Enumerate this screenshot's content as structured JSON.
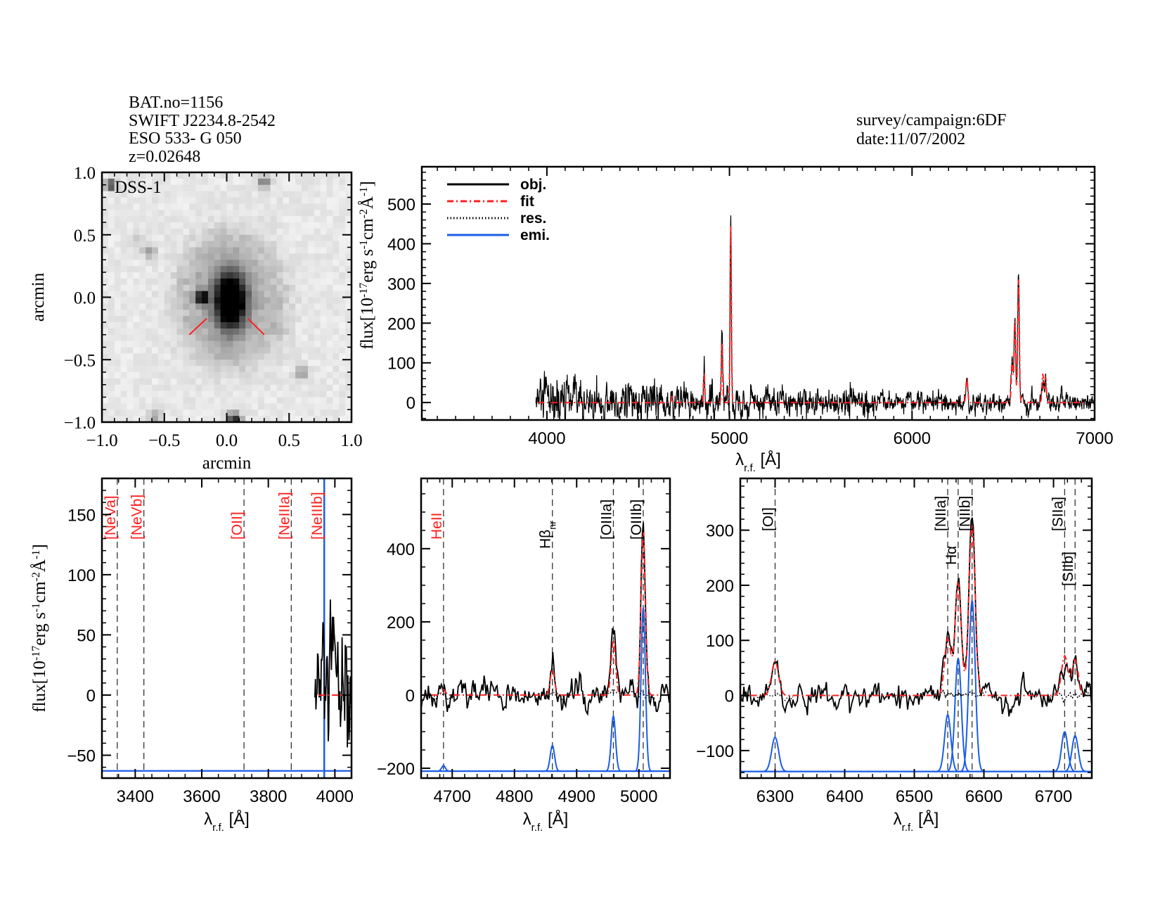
{
  "header": {
    "lines": [
      "BAT.no=1156",
      "SWIFT J2234.8-2542",
      "ESO 533- G 050",
      "z=0.02648"
    ],
    "right_lines": [
      "survey/campaign:6DF",
      "date:11/07/2002"
    ]
  },
  "colors": {
    "obj": "#000000",
    "fit": "#ff2020",
    "res": "#000000",
    "emi": "#1a5ee6",
    "marker": "#ff2020"
  },
  "chart_data": [
    {
      "type": "heatmap",
      "label": "DSS-1",
      "colormap": "inverted-gray",
      "xlabel": "arcmin",
      "ylabel": "arcmin",
      "xlim": [
        -1,
        1
      ],
      "ylim": [
        -1,
        1
      ],
      "xticks": [
        -1,
        -0.5,
        0,
        0.5,
        1
      ],
      "xtick_labels": [
        "−1.0",
        "−0.5",
        "0.0",
        "0.5",
        "1.0"
      ],
      "yticks": [
        -1,
        -0.5,
        0,
        0.5,
        1
      ],
      "ytick_labels": [
        "−1.0",
        "−0.5",
        "0.0",
        "0.5",
        "1.0"
      ]
    },
    {
      "type": "line",
      "xlabel": {
        "t": "λ",
        "sub": "r.f.",
        "unit": " [Å]"
      },
      "ylabel": [
        {
          "t": "flux[10"
        },
        {
          "t": "-17",
          "sup": true
        },
        {
          "t": "erg s"
        },
        {
          "t": "-1",
          "sup": true
        },
        {
          "t": "cm"
        },
        {
          "t": "-2",
          "sup": true
        },
        {
          "t": "Å"
        },
        {
          "t": "-1",
          "sup": true
        },
        {
          "t": "]"
        }
      ],
      "xlim": [
        3315,
        7000
      ],
      "ylim": [
        -44,
        594
      ],
      "xticks": [
        4000,
        5000,
        6000,
        7000
      ],
      "xtick_labels": [
        "4000",
        "5000",
        "6000",
        "7000"
      ],
      "yticks": [
        0,
        100,
        200,
        300,
        400,
        500
      ],
      "ytick_labels": [
        "0",
        "100",
        "200",
        "300",
        "400",
        "500"
      ],
      "legend": {
        "position": "top-left",
        "entries": [
          {
            "label": "obj.",
            "color": "#000000",
            "style": "solid"
          },
          {
            "label": "fit",
            "color": "#ff2020",
            "style": "dash-dot"
          },
          {
            "label": "res.",
            "color": "#000000",
            "style": "dotted"
          },
          {
            "label": "emi.",
            "color": "#1a5ee6",
            "style": "solid"
          }
        ]
      },
      "spectrum_start": 3940,
      "fit_start": 3950,
      "continuum": 0,
      "components": [
        {
          "name": "HeII",
          "wavelength": 4686,
          "peak": 15,
          "sigma": 3
        },
        {
          "name": "Hbeta_nr",
          "wavelength": 4861,
          "peak": 70,
          "sigma": 3.5
        },
        {
          "name": "[OIIIa]",
          "wavelength": 4959,
          "peak": 150,
          "sigma": 3.5
        },
        {
          "name": "[OIIIb]",
          "wavelength": 5007,
          "peak": 445,
          "sigma": 3.5
        },
        {
          "name": "[OI]",
          "wavelength": 6300,
          "peak": 62,
          "sigma": 5
        },
        {
          "name": "[NIIa]",
          "wavelength": 6548,
          "peak": 103,
          "sigma": 4.5
        },
        {
          "name": "Halpha",
          "wavelength": 6563,
          "peak": 205,
          "sigma": 4.5
        },
        {
          "name": "[NIIb]",
          "wavelength": 6583,
          "peak": 310,
          "sigma": 4.5
        },
        {
          "name": "[SIIa]",
          "wavelength": 6716,
          "peak": 72,
          "sigma": 4.5
        },
        {
          "name": "[SIIb]",
          "wavelength": 6731,
          "peak": 65,
          "sigma": 4.5
        }
      ]
    },
    {
      "type": "line",
      "xlabel": {
        "t": "λ",
        "sub": "r.f.",
        "unit": " [Å]"
      },
      "ylabel": [
        {
          "t": "flux[10"
        },
        {
          "t": "-17",
          "sup": true
        },
        {
          "t": "erg s"
        },
        {
          "t": "-1",
          "sup": true
        },
        {
          "t": "cm"
        },
        {
          "t": "-2",
          "sup": true
        },
        {
          "t": "Å"
        },
        {
          "t": "-1",
          "sup": true
        },
        {
          "t": "]"
        }
      ],
      "xlim": [
        3300,
        4050
      ],
      "ylim": [
        -69,
        180
      ],
      "xticks": [
        3400,
        3600,
        3800,
        4000
      ],
      "xtick_labels": [
        "3400",
        "3600",
        "3800",
        "4000"
      ],
      "yticks": [
        -50,
        0,
        50,
        100,
        150
      ],
      "ytick_labels": [
        "−50",
        "0",
        "50",
        "100",
        "150"
      ],
      "emi_offset": -63,
      "emi_vertical_at": 3968,
      "line_markers": [
        {
          "label": "[NeVa]",
          "wavelength": 3346,
          "color": "#ff2020"
        },
        {
          "label": "[NeVb]",
          "wavelength": 3426,
          "color": "#ff2020"
        },
        {
          "label": "[OII]",
          "wavelength": 3727,
          "color": "#ff2020"
        },
        {
          "label": "[NeIIIa]",
          "wavelength": 3869,
          "color": "#ff2020"
        },
        {
          "label": "[NeIIIb]",
          "wavelength": 3968,
          "color": "#ff2020"
        }
      ]
    },
    {
      "type": "line",
      "xlabel": {
        "t": "λ",
        "sub": "r.f.",
        "unit": " [Å]"
      },
      "xlim": [
        4650,
        5050
      ],
      "ylim": [
        -227,
        592
      ],
      "xticks": [
        4700,
        4800,
        4900,
        5000
      ],
      "xtick_labels": [
        "4700",
        "4800",
        "4900",
        "5000"
      ],
      "yticks": [
        -200,
        0,
        200,
        400
      ],
      "ytick_labels": [
        "−200",
        "0",
        "200",
        "400"
      ],
      "emi_offset": -208,
      "line_markers": [
        {
          "label": "HeII",
          "wavelength": 4686,
          "color": "#ff2020"
        },
        {
          "label": "Hβ",
          "sub": "nr",
          "wavelength": 4861,
          "color": "#000000"
        },
        {
          "label": "[OIIIa]",
          "wavelength": 4959,
          "color": "#000000"
        },
        {
          "label": "[OIIIb]",
          "wavelength": 5007,
          "color": "#000000"
        }
      ]
    },
    {
      "type": "line",
      "xlabel": {
        "t": "λ",
        "sub": "r.f.",
        "unit": " [Å]"
      },
      "xlim": [
        6250,
        6755
      ],
      "ylim": [
        -150,
        394
      ],
      "xticks": [
        6300,
        6400,
        6500,
        6600,
        6700
      ],
      "xtick_labels": [
        "6300",
        "6400",
        "6500",
        "6600",
        "6700"
      ],
      "yticks": [
        -100,
        0,
        100,
        200,
        300
      ],
      "ytick_labels": [
        "−100",
        "0",
        "100",
        "200",
        "300"
      ],
      "emi_offset": -138,
      "line_markers": [
        {
          "label": "[OI]",
          "wavelength": 6300,
          "color": "#000000"
        },
        {
          "label": "[NIIa]",
          "wavelength": 6548,
          "color": "#000000"
        },
        {
          "label": "Hα",
          "wavelength": 6563,
          "color": "#000000"
        },
        {
          "label": "[NIIb]",
          "wavelength": 6583,
          "color": "#000000"
        },
        {
          "label": "[SIIa]",
          "wavelength": 6716,
          "color": "#000000"
        },
        {
          "label": "[SIIb]",
          "wavelength": 6731,
          "color": "#000000"
        }
      ]
    }
  ]
}
